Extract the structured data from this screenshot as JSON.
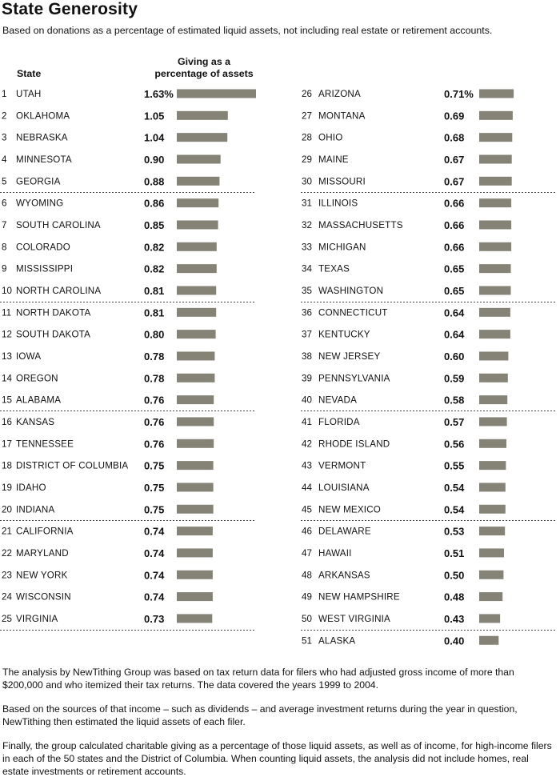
{
  "title": "State Generosity",
  "subtitle": "Based on donations as a percentage of estimated liquid assets, not including real estate or retirement accounts.",
  "headers": {
    "state": "State",
    "giving_line1": "Giving as a",
    "giving_line2": "percentage of assets"
  },
  "chart_data": {
    "type": "bar",
    "orientation": "horizontal",
    "title": "State Generosity",
    "unit": "percent of assets",
    "xlim": [
      0,
      1.63
    ],
    "grid": false,
    "categories": [
      "UTAH",
      "OKLAHOMA",
      "NEBRASKA",
      "MINNESOTA",
      "GEORGIA",
      "WYOMING",
      "SOUTH CAROLINA",
      "COLORADO",
      "MISSISSIPPI",
      "NORTH CAROLINA",
      "NORTH DAKOTA",
      "SOUTH DAKOTA",
      "IOWA",
      "OREGON",
      "ALABAMA",
      "KANSAS",
      "TENNESSEE",
      "DISTRICT OF COLUMBIA",
      "IDAHO",
      "INDIANA",
      "CALIFORNIA",
      "MARYLAND",
      "NEW YORK",
      "WISCONSIN",
      "VIRGINIA",
      "ARIZONA",
      "MONTANA",
      "OHIO",
      "MAINE",
      "MISSOURI",
      "ILLINOIS",
      "MASSACHUSETTS",
      "MICHIGAN",
      "TEXAS",
      "WASHINGTON",
      "CONNECTICUT",
      "KENTUCKY",
      "NEW JERSEY",
      "PENNSYLVANIA",
      "NEVADA",
      "FLORIDA",
      "RHODE ISLAND",
      "VERMONT",
      "LOUISIANA",
      "NEW MEXICO",
      "DELAWARE",
      "HAWAII",
      "ARKANSAS",
      "NEW HAMPSHIRE",
      "WEST VIRGINIA",
      "ALASKA"
    ],
    "values": [
      1.63,
      1.05,
      1.04,
      0.9,
      0.88,
      0.86,
      0.85,
      0.82,
      0.82,
      0.81,
      0.81,
      0.8,
      0.78,
      0.78,
      0.76,
      0.76,
      0.76,
      0.75,
      0.75,
      0.75,
      0.74,
      0.74,
      0.74,
      0.74,
      0.73,
      0.71,
      0.69,
      0.68,
      0.67,
      0.67,
      0.66,
      0.66,
      0.66,
      0.65,
      0.65,
      0.64,
      0.64,
      0.6,
      0.59,
      0.58,
      0.57,
      0.56,
      0.55,
      0.54,
      0.54,
      0.53,
      0.51,
      0.5,
      0.48,
      0.43,
      0.4
    ],
    "value_labels": [
      "1.63%",
      "1.05",
      "1.04",
      "0.90",
      "0.88",
      "0.86",
      "0.85",
      "0.82",
      "0.82",
      "0.81",
      "0.81",
      "0.80",
      "0.78",
      "0.78",
      "0.76",
      "0.76",
      "0.76",
      "0.75",
      "0.75",
      "0.75",
      "0.74",
      "0.74",
      "0.74",
      "0.74",
      "0.73",
      "0.71%",
      "0.69",
      "0.68",
      "0.67",
      "0.67",
      "0.66",
      "0.66",
      "0.66",
      "0.65",
      "0.65",
      "0.64",
      "0.64",
      "0.60",
      "0.59",
      "0.58",
      "0.57",
      "0.56",
      "0.55",
      "0.54",
      "0.54",
      "0.53",
      "0.51",
      "0.50",
      "0.48",
      "0.43",
      "0.40"
    ],
    "bar_color": "#858276"
  },
  "notes": [
    "The analysis by NewTithing Group was based on tax return data for filers who had adjusted gross income of more than $200,000 and who itemized their tax returns.  The data covered the years 1999 to 2004.",
    "Based on the sources of that income – such as dividends – and average investment returns during the year in question, NewTithing then estimated the liquid assets of each filer.",
    "Finally, the group calculated charitable giving as a percentage of those liquid assets, as well as of income, for high-income filers in each of the 50 states and the District of Columbia. When counting liquid assets, the analysis did not include homes, real estate investments or retirement accounts."
  ]
}
